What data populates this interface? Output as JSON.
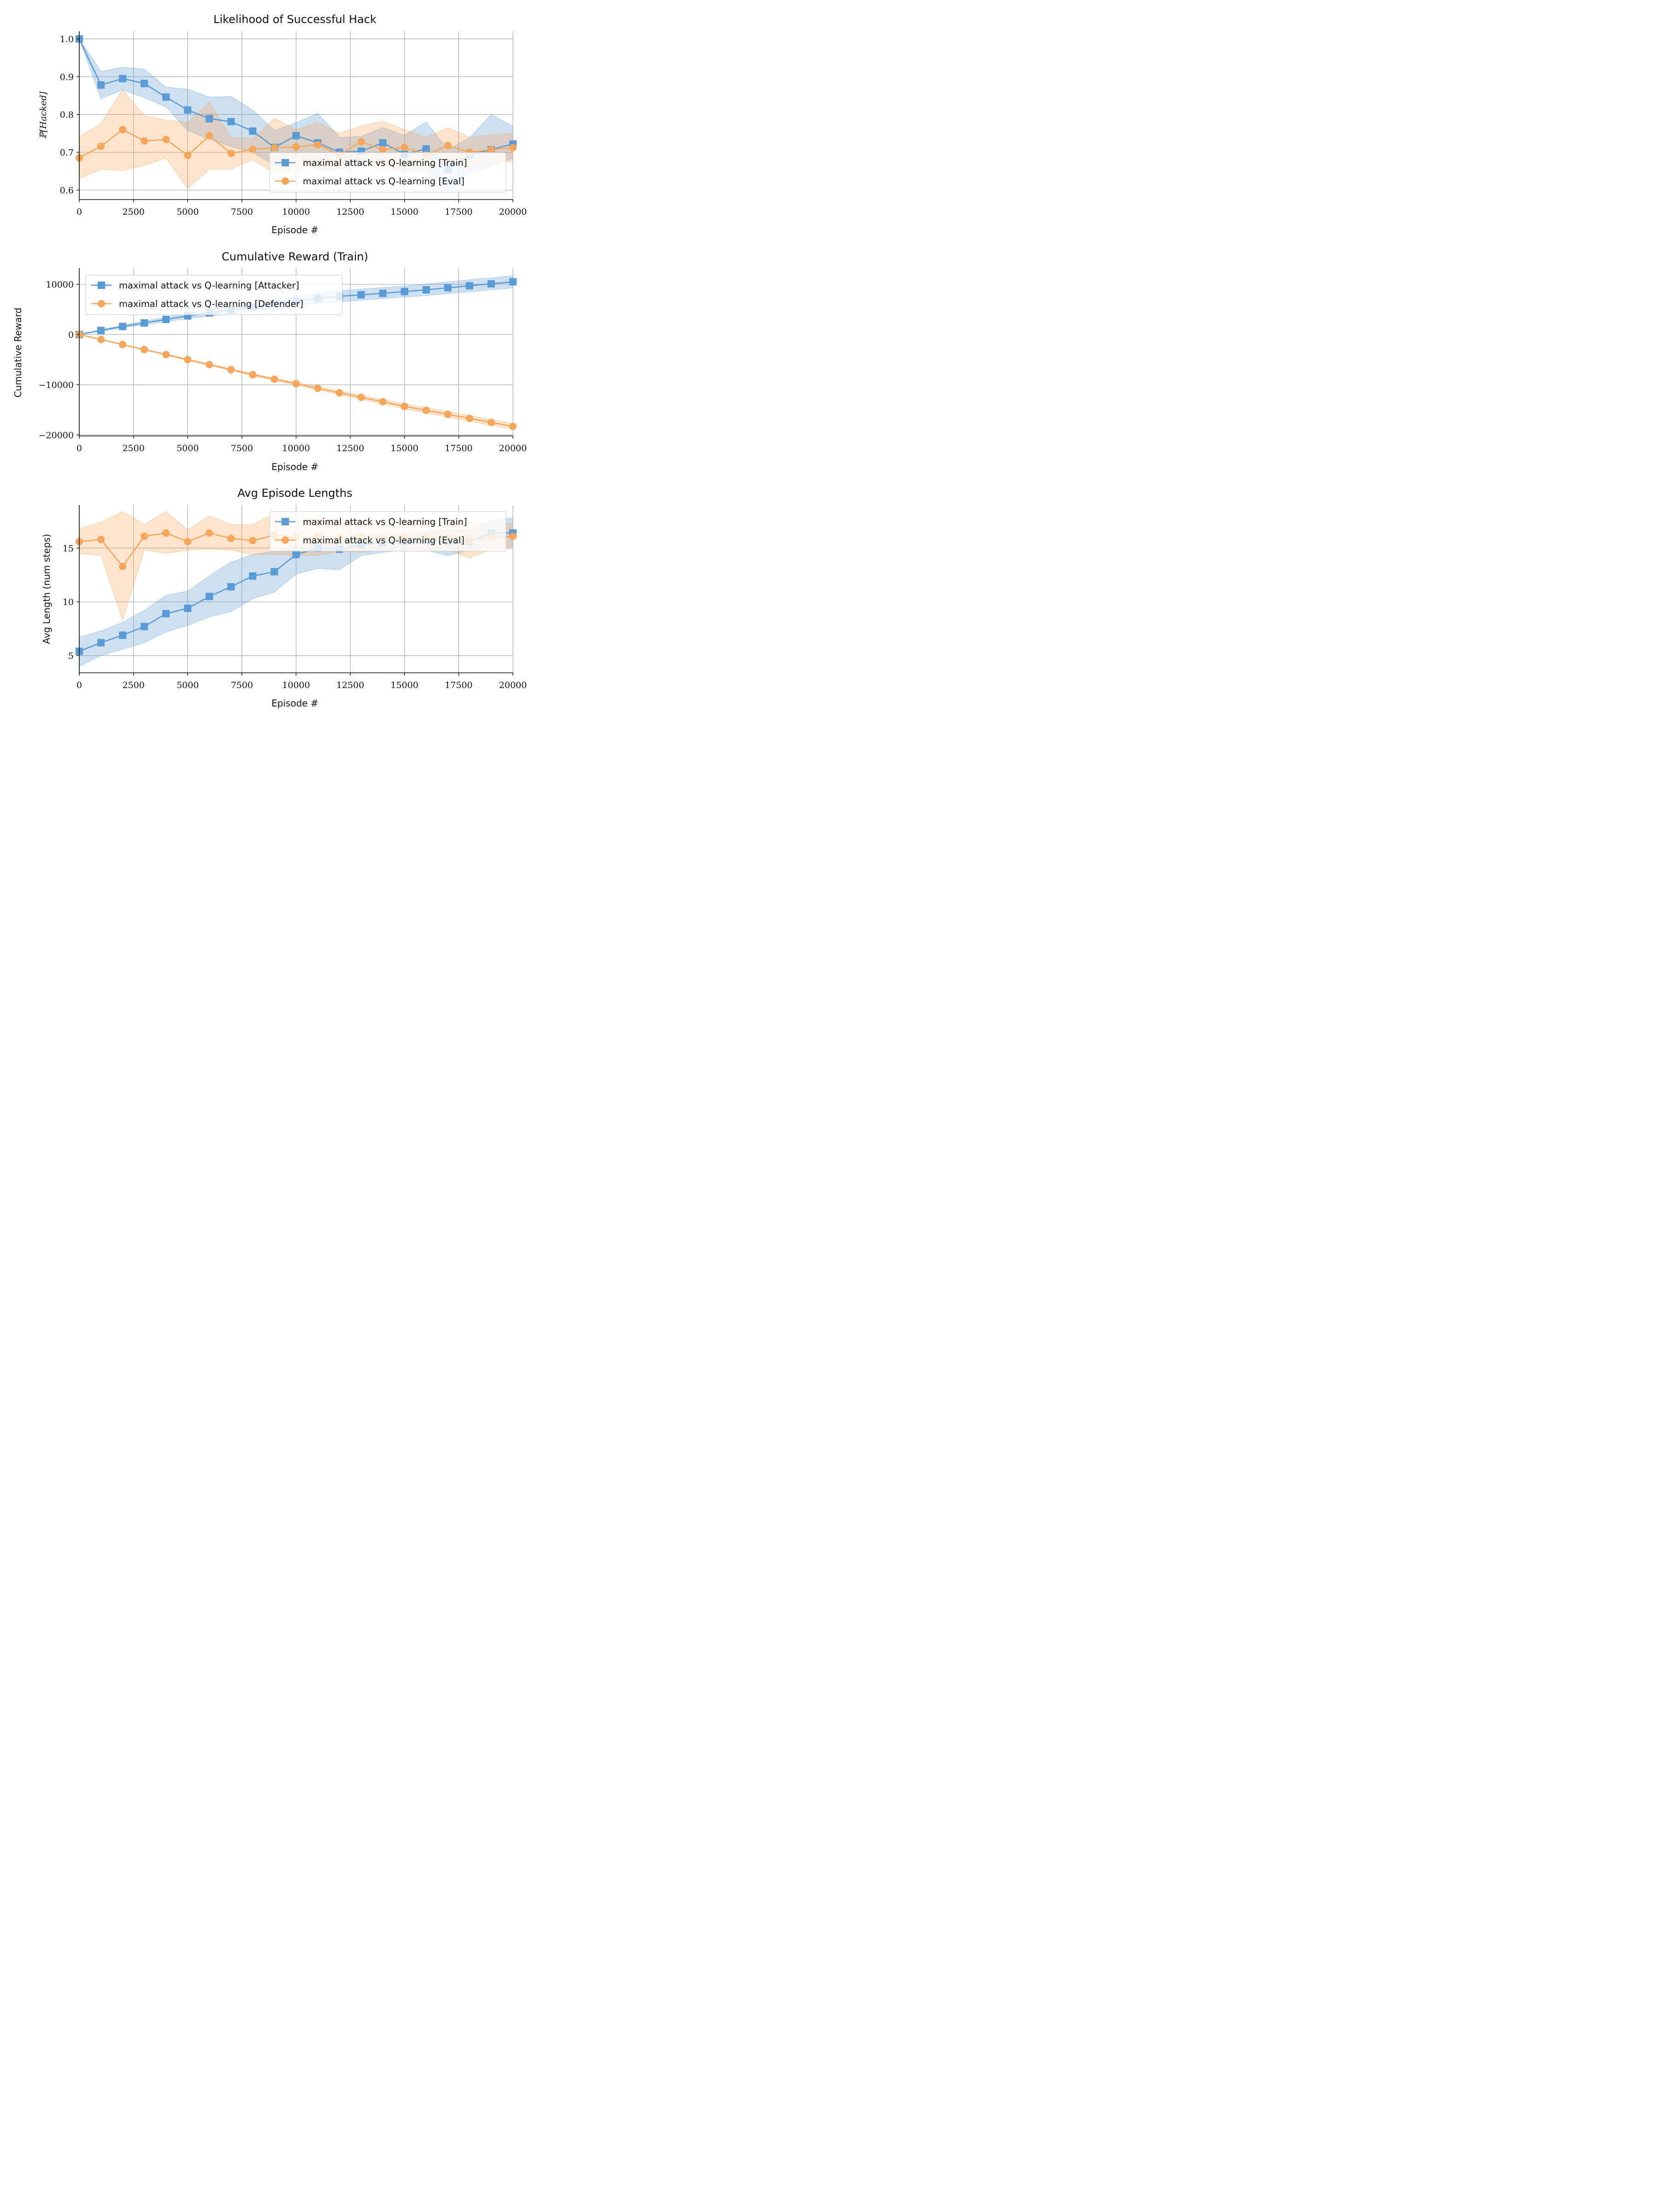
{
  "figure": {
    "background": "#ffffff"
  },
  "colors": {
    "train": "#5b9bd5",
    "eval": "#f5a65b"
  },
  "chart_data": [
    {
      "type": "line",
      "title": "Likelihood of Successful Hack",
      "xlabel": "Episode #",
      "ylabel": "ℙ[Hacked]",
      "xlim": [
        0,
        20000
      ],
      "ylim": [
        0.575,
        1.02
      ],
      "xticks": [
        0,
        2500,
        5000,
        7500,
        10000,
        12500,
        15000,
        17500,
        20000
      ],
      "xtick_labels": [
        "0",
        "2500",
        "5000",
        "7500",
        "10000",
        "12500",
        "15000",
        "17500",
        "20000"
      ],
      "yticks": [
        0.6,
        0.7,
        0.8,
        0.9,
        1.0
      ],
      "ytick_labels": [
        "0.6",
        "0.7",
        "0.8",
        "0.9",
        "1.0"
      ],
      "grid": true,
      "legend": "lower-right",
      "x": [
        0,
        1000,
        2000,
        3000,
        4000,
        5000,
        6000,
        7000,
        8000,
        9000,
        10000,
        11000,
        12000,
        13000,
        14000,
        15000,
        16000,
        17000,
        18000,
        19000,
        20000
      ],
      "series": [
        {
          "name": "maximal attack vs Q-learning [Train]",
          "color": "#5b9bd5",
          "marker": "square",
          "values": [
            1.0,
            0.878,
            0.895,
            0.882,
            0.846,
            0.812,
            0.789,
            0.781,
            0.756,
            0.713,
            0.744,
            0.725,
            0.7,
            0.703,
            0.725,
            0.695,
            0.709,
            0.655,
            0.693,
            0.707,
            0.722
          ],
          "lower": [
            1.0,
            0.842,
            0.865,
            0.845,
            0.82,
            0.757,
            0.735,
            0.715,
            0.7,
            0.665,
            0.69,
            0.652,
            0.655,
            0.66,
            0.672,
            0.648,
            0.652,
            0.595,
            0.645,
            0.662,
            0.685
          ],
          "upper": [
            1.0,
            0.914,
            0.925,
            0.92,
            0.872,
            0.867,
            0.846,
            0.848,
            0.812,
            0.758,
            0.778,
            0.803,
            0.74,
            0.742,
            0.765,
            0.745,
            0.78,
            0.708,
            0.738,
            0.8,
            0.768
          ]
        },
        {
          "name": "maximal attack vs Q-learning [Eval]",
          "color": "#f5a65b",
          "marker": "circle",
          "values": [
            0.685,
            0.716,
            0.76,
            0.73,
            0.734,
            0.692,
            0.744,
            0.697,
            0.708,
            0.712,
            0.714,
            0.72,
            0.693,
            0.728,
            0.707,
            0.713,
            0.693,
            0.718,
            0.7,
            0.707,
            0.712
          ],
          "lower": [
            0.63,
            0.655,
            0.652,
            0.665,
            0.685,
            0.604,
            0.655,
            0.655,
            0.68,
            0.645,
            0.65,
            0.66,
            0.655,
            0.675,
            0.648,
            0.655,
            0.655,
            0.668,
            0.66,
            0.67,
            0.675
          ],
          "upper": [
            0.742,
            0.776,
            0.866,
            0.797,
            0.785,
            0.78,
            0.834,
            0.74,
            0.737,
            0.79,
            0.76,
            0.78,
            0.75,
            0.77,
            0.782,
            0.76,
            0.74,
            0.765,
            0.74,
            0.747,
            0.75
          ]
        }
      ]
    },
    {
      "type": "line",
      "title": "Cumulative Reward (Train)",
      "xlabel": "Episode #",
      "ylabel": "Cumulative Reward",
      "xlim": [
        0,
        20000
      ],
      "ylim": [
        -20200,
        13200
      ],
      "xticks": [
        0,
        2500,
        5000,
        7500,
        10000,
        12500,
        15000,
        17500,
        20000
      ],
      "xtick_labels": [
        "0",
        "2500",
        "5000",
        "7500",
        "10000",
        "12500",
        "15000",
        "17500",
        "20000"
      ],
      "yticks": [
        -20000,
        -10000,
        0,
        10000
      ],
      "ytick_labels": [
        "−20000",
        "−10000",
        "0",
        "10000"
      ],
      "grid": true,
      "legend": "upper-left",
      "x": [
        0,
        1000,
        2000,
        3000,
        4000,
        5000,
        6000,
        7000,
        8000,
        9000,
        10000,
        11000,
        12000,
        13000,
        14000,
        15000,
        16000,
        17000,
        18000,
        19000,
        20000
      ],
      "series": [
        {
          "name": "maximal attack vs Q-learning [Attacker]",
          "color": "#5b9bd5",
          "marker": "square",
          "values": [
            0,
            800,
            1600,
            2300,
            3000,
            3700,
            4300,
            4900,
            5500,
            6100,
            6650,
            7150,
            7600,
            7900,
            8200,
            8550,
            8900,
            9300,
            9700,
            10100,
            10500
          ],
          "lower": [
            0,
            650,
            1350,
            1950,
            2550,
            3150,
            3650,
            4150,
            4650,
            5150,
            5650,
            6100,
            6500,
            6850,
            7150,
            7450,
            7750,
            8150,
            8500,
            8900,
            9300
          ],
          "upper": [
            0,
            950,
            1850,
            2650,
            3450,
            4250,
            4950,
            5650,
            6350,
            7050,
            7650,
            8200,
            8700,
            9050,
            9350,
            9650,
            10050,
            10450,
            10900,
            11300,
            11700
          ]
        },
        {
          "name": "maximal attack vs Q-learning [Defender]",
          "color": "#f5a65b",
          "marker": "circle",
          "values": [
            0,
            -1000,
            -2000,
            -3000,
            -4000,
            -5000,
            -6000,
            -7000,
            -8000,
            -8900,
            -9800,
            -10700,
            -11600,
            -12500,
            -13400,
            -14300,
            -15100,
            -15900,
            -16700,
            -17500,
            -18300
          ],
          "lower": [
            0,
            -1050,
            -2080,
            -3100,
            -4120,
            -5150,
            -6170,
            -7200,
            -8230,
            -9150,
            -10100,
            -11050,
            -11980,
            -12920,
            -13860,
            -14780,
            -15620,
            -16460,
            -17260,
            -18070,
            -18850
          ],
          "upper": [
            0,
            -950,
            -1920,
            -2900,
            -3880,
            -4850,
            -5830,
            -6800,
            -7770,
            -8650,
            -9500,
            -10350,
            -11220,
            -12080,
            -12940,
            -13820,
            -14580,
            -15340,
            -16140,
            -16930,
            -17750
          ]
        }
      ]
    },
    {
      "type": "line",
      "title": "Avg Episode Lengths",
      "xlabel": "Episode #",
      "ylabel": "Avg Length (num steps)",
      "xlim": [
        0,
        20000
      ],
      "ylim": [
        3.4,
        19.0
      ],
      "xticks": [
        0,
        2500,
        5000,
        7500,
        10000,
        12500,
        15000,
        17500,
        20000
      ],
      "xtick_labels": [
        "0",
        "2500",
        "5000",
        "7500",
        "10000",
        "12500",
        "15000",
        "17500",
        "20000"
      ],
      "yticks": [
        5,
        10,
        15
      ],
      "ytick_labels": [
        "5",
        "10",
        "15"
      ],
      "grid": true,
      "legend": "upper-right",
      "x": [
        0,
        1000,
        2000,
        3000,
        4000,
        5000,
        6000,
        7000,
        8000,
        9000,
        10000,
        11000,
        12000,
        13000,
        14000,
        15000,
        16000,
        17000,
        18000,
        19000,
        20000
      ],
      "series": [
        {
          "name": "maximal attack vs Q-learning [Train]",
          "color": "#5b9bd5",
          "marker": "square",
          "values": [
            5.4,
            6.2,
            6.9,
            7.7,
            8.9,
            9.4,
            10.5,
            11.4,
            12.4,
            12.8,
            14.4,
            15.0,
            14.9,
            15.3,
            15.5,
            15.6,
            15.7,
            15.6,
            15.6,
            16.4,
            16.4
          ],
          "lower": [
            4.0,
            5.0,
            5.6,
            6.2,
            7.2,
            7.8,
            8.6,
            9.1,
            10.3,
            10.9,
            12.6,
            13.1,
            13.0,
            14.3,
            14.6,
            14.8,
            14.8,
            14.3,
            14.8,
            15.2,
            15.1
          ],
          "upper": [
            6.7,
            7.3,
            8.1,
            9.2,
            10.6,
            11.0,
            12.4,
            13.7,
            14.4,
            14.7,
            15.3,
            15.8,
            16.1,
            16.2,
            16.3,
            16.3,
            16.5,
            16.7,
            16.7,
            17.6,
            17.8
          ]
        },
        {
          "name": "maximal attack vs Q-learning [Eval]",
          "color": "#f5a65b",
          "marker": "circle",
          "values": [
            15.6,
            15.8,
            13.3,
            16.1,
            16.4,
            15.6,
            16.4,
            15.9,
            15.7,
            16.2,
            16.0,
            16.1,
            16.0,
            16.1,
            15.8,
            16.0,
            16.0,
            15.9,
            15.7,
            16.0,
            16.1
          ],
          "lower": [
            14.5,
            14.3,
            8.3,
            14.8,
            14.5,
            14.8,
            14.9,
            14.8,
            14.4,
            14.4,
            14.3,
            14.3,
            14.7,
            14.6,
            14.8,
            14.9,
            14.7,
            14.8,
            14.1,
            14.9,
            15.0
          ],
          "upper": [
            16.8,
            17.4,
            18.4,
            17.2,
            18.4,
            16.7,
            18.0,
            17.2,
            17.2,
            18.2,
            17.6,
            18.1,
            17.4,
            17.5,
            17.2,
            17.2,
            17.3,
            17.1,
            17.4,
            17.2,
            17.3
          ]
        }
      ]
    }
  ]
}
